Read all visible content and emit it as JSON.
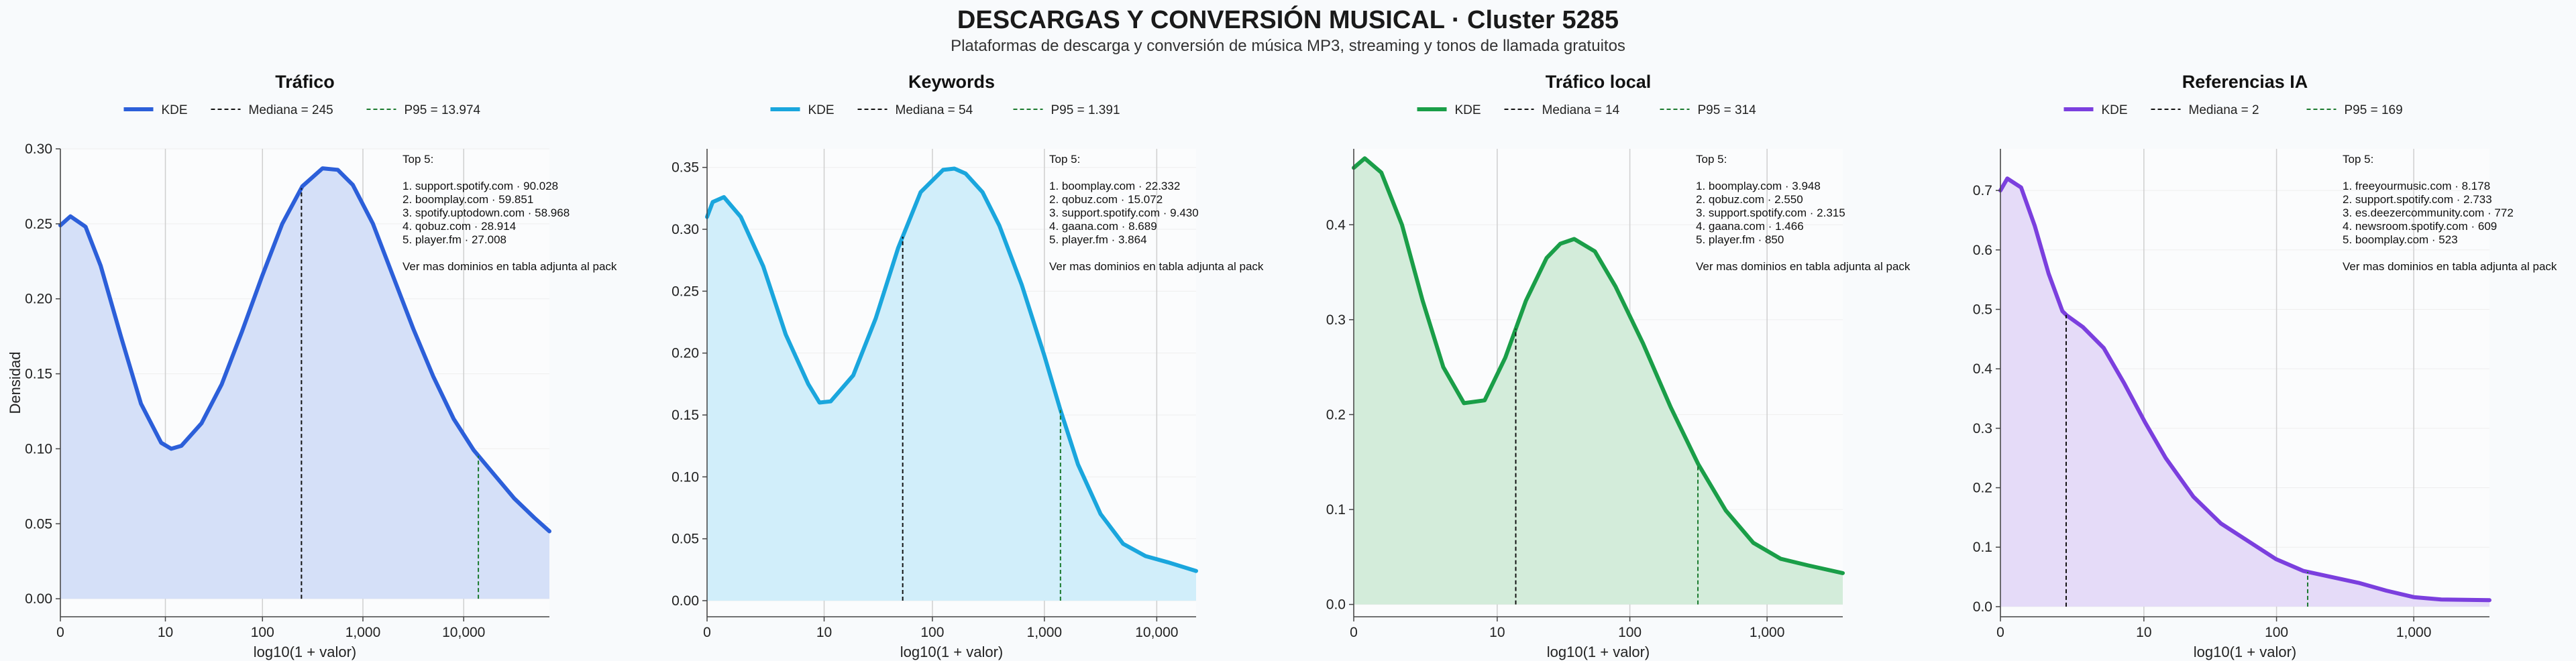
{
  "title": "DESCARGAS Y CONVERSIÓN MUSICAL · Cluster 5285",
  "subtitle": "Plataformas de descarga y conversión de música MP3, streaming y tonos de llamada gratuitos",
  "chart_data": [
    {
      "type": "area",
      "title": "Tráfico",
      "color": "#2c5fd9",
      "fill": "#d5e0f8",
      "xlabel": "log10(1 + valor)",
      "ylabel": "Densidad",
      "x_scale": "log10(1+x)",
      "xlim": [
        0,
        4.85
      ],
      "ylim": [
        -0.012,
        0.3
      ],
      "x_ticks": [
        0,
        10,
        100,
        1000,
        10000
      ],
      "x_tick_labels": [
        "0",
        "10",
        "100",
        "1,000",
        "10,000"
      ],
      "y_ticks": [
        0.0,
        0.05,
        0.1,
        0.15,
        0.2,
        0.25,
        0.3
      ],
      "y_tick_labels": [
        "0.00",
        "0.05",
        "0.10",
        "0.15",
        "0.20",
        "0.25",
        "0.30"
      ],
      "legend": [
        "KDE",
        "Mediana = 245",
        "P95 = 13.974"
      ],
      "median": 245,
      "p95": 13974,
      "kde": {
        "x": [
          0,
          0.1,
          0.25,
          0.4,
          0.6,
          0.8,
          1.0,
          1.1,
          1.2,
          1.4,
          1.6,
          1.8,
          2.0,
          2.2,
          2.4,
          2.6,
          2.75,
          2.9,
          3.1,
          3.3,
          3.5,
          3.7,
          3.9,
          4.1,
          4.3,
          4.5,
          4.7,
          4.85
        ],
        "y": [
          0.249,
          0.255,
          0.248,
          0.222,
          0.175,
          0.13,
          0.104,
          0.1,
          0.102,
          0.117,
          0.143,
          0.178,
          0.215,
          0.25,
          0.275,
          0.287,
          0.286,
          0.276,
          0.25,
          0.215,
          0.18,
          0.148,
          0.12,
          0.099,
          0.083,
          0.067,
          0.054,
          0.045
        ]
      },
      "annotation": [
        "Top 5:",
        "",
        "1. support.spotify.com · 90.028",
        "2. boomplay.com · 59.851",
        "3. spotify.uptodown.com · 58.968",
        "4. qobuz.com · 28.914",
        "5. player.fm · 27.008",
        "",
        "Ver mas dominios en tabla adjunta al pack"
      ]
    },
    {
      "type": "area",
      "title": "Keywords",
      "color": "#1aa6dd",
      "fill": "#d1eefa",
      "xlabel": "log10(1 + valor)",
      "ylabel": "",
      "x_scale": "log10(1+x)",
      "xlim": [
        0,
        4.35
      ],
      "ylim": [
        -0.013,
        0.365
      ],
      "x_ticks": [
        0,
        10,
        100,
        1000,
        10000
      ],
      "x_tick_labels": [
        "0",
        "10",
        "100",
        "1,000",
        "10,000"
      ],
      "y_ticks": [
        0.0,
        0.05,
        0.1,
        0.15,
        0.2,
        0.25,
        0.3,
        0.35
      ],
      "y_tick_labels": [
        "0.00",
        "0.05",
        "0.10",
        "0.15",
        "0.20",
        "0.25",
        "0.30",
        "0.35"
      ],
      "legend": [
        "KDE",
        "Mediana = 54",
        "P95 = 1.391"
      ],
      "median": 54,
      "p95": 1391,
      "kde": {
        "x": [
          0,
          0.05,
          0.15,
          0.3,
          0.5,
          0.7,
          0.9,
          1.0,
          1.1,
          1.3,
          1.5,
          1.7,
          1.9,
          2.1,
          2.2,
          2.3,
          2.45,
          2.6,
          2.8,
          3.0,
          3.14,
          3.3,
          3.5,
          3.7,
          3.9,
          4.1,
          4.35
        ],
        "y": [
          0.31,
          0.322,
          0.326,
          0.31,
          0.27,
          0.215,
          0.175,
          0.16,
          0.161,
          0.182,
          0.228,
          0.285,
          0.33,
          0.348,
          0.349,
          0.345,
          0.33,
          0.303,
          0.255,
          0.198,
          0.155,
          0.11,
          0.07,
          0.046,
          0.036,
          0.031,
          0.024
        ]
      },
      "annotation": [
        "Top 5:",
        "",
        "1. boomplay.com · 22.332",
        "2. qobuz.com · 15.072",
        "3. support.spotify.com · 9.430",
        "4. gaana.com · 8.689",
        "5. player.fm · 3.864",
        "",
        "Ver mas dominios en tabla adjunta al pack"
      ]
    },
    {
      "type": "area",
      "title": "Tráfico local",
      "color": "#1a9e48",
      "fill": "#d3ecda",
      "xlabel": "log10(1 + valor)",
      "ylabel": "",
      "x_scale": "log10(1+x)",
      "xlim": [
        0,
        3.55
      ],
      "ylim": [
        -0.013,
        0.48
      ],
      "x_ticks": [
        0,
        10,
        100,
        1000
      ],
      "x_tick_labels": [
        "0",
        "10",
        "100",
        "1,000"
      ],
      "y_ticks": [
        0.0,
        0.1,
        0.2,
        0.3,
        0.4
      ],
      "y_tick_labels": [
        "0.0",
        "0.1",
        "0.2",
        "0.3",
        "0.4"
      ],
      "legend": [
        "KDE",
        "Mediana = 14",
        "P95 = 314"
      ],
      "median": 14,
      "p95": 314,
      "kde": {
        "x": [
          0,
          0.08,
          0.2,
          0.35,
          0.5,
          0.65,
          0.8,
          0.95,
          1.1,
          1.25,
          1.4,
          1.5,
          1.6,
          1.75,
          1.9,
          2.1,
          2.3,
          2.5,
          2.7,
          2.9,
          3.1,
          3.3,
          3.55
        ],
        "y": [
          0.46,
          0.47,
          0.455,
          0.4,
          0.32,
          0.25,
          0.212,
          0.215,
          0.26,
          0.32,
          0.365,
          0.38,
          0.385,
          0.372,
          0.335,
          0.275,
          0.208,
          0.148,
          0.099,
          0.065,
          0.048,
          0.041,
          0.033
        ]
      },
      "annotation": [
        "Top 5:",
        "",
        "1. boomplay.com · 3.948",
        "2. qobuz.com · 2.550",
        "3. support.spotify.com · 2.315",
        "4. gaana.com · 1.466",
        "5. player.fm · 850",
        "",
        "Ver mas dominios en tabla adjunta al pack"
      ]
    },
    {
      "type": "area",
      "title": "Referencias IA",
      "color": "#7b3fde",
      "fill": "#e5dbf8",
      "xlabel": "log10(1 + valor)",
      "ylabel": "",
      "x_scale": "log10(1+x)",
      "xlim": [
        0,
        3.55
      ],
      "ylim": [
        -0.017,
        0.77
      ],
      "x_ticks": [
        0,
        10,
        100,
        1000
      ],
      "x_tick_labels": [
        "0",
        "10",
        "100",
        "1,000"
      ],
      "y_ticks": [
        0.0,
        0.1,
        0.2,
        0.3,
        0.4,
        0.5,
        0.6,
        0.7
      ],
      "y_tick_labels": [
        "0.0",
        "0.1",
        "0.2",
        "0.3",
        "0.4",
        "0.5",
        "0.6",
        "0.7"
      ],
      "legend": [
        "KDE",
        "Mediana = 2",
        "P95 = 169"
      ],
      "median": 2,
      "p95": 169,
      "kde": {
        "x": [
          0,
          0.05,
          0.15,
          0.25,
          0.35,
          0.45,
          0.48,
          0.6,
          0.75,
          0.9,
          1.05,
          1.2,
          1.4,
          1.6,
          1.8,
          2.0,
          2.2,
          2.4,
          2.6,
          2.8,
          3.0,
          3.2,
          3.55
        ],
        "y": [
          0.7,
          0.72,
          0.705,
          0.64,
          0.56,
          0.497,
          0.49,
          0.47,
          0.435,
          0.375,
          0.31,
          0.25,
          0.185,
          0.14,
          0.11,
          0.08,
          0.06,
          0.05,
          0.04,
          0.027,
          0.016,
          0.012,
          0.011
        ]
      },
      "annotation": [
        "Top 5:",
        "",
        "1. freeyourmusic.com · 8.178",
        "2. support.spotify.com · 2.733",
        "3. es.deezercommunity.com · 772",
        "4. newsroom.spotify.com · 609",
        "5. boomplay.com · 523",
        "",
        "Ver mas dominios en tabla adjunta al pack"
      ]
    }
  ]
}
